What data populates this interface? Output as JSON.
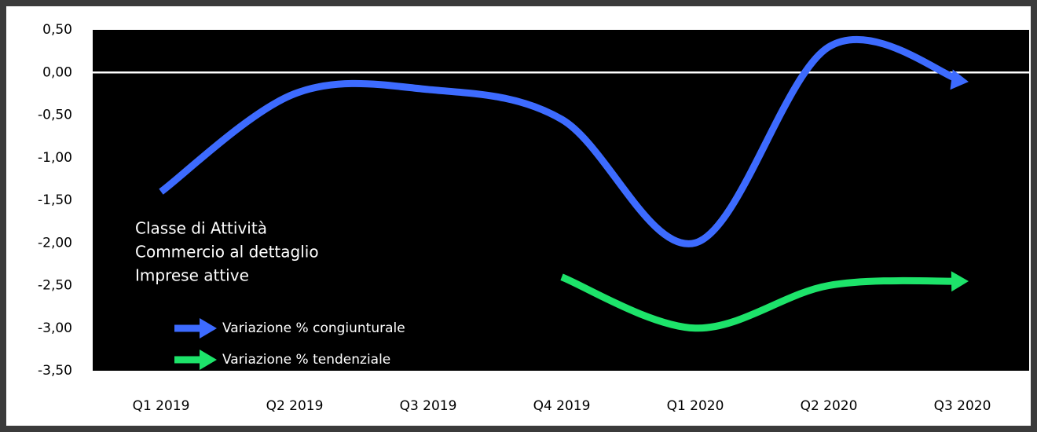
{
  "chart_data": {
    "type": "line",
    "categories": [
      "Q1 2019",
      "Q2 2019",
      "Q3 2019",
      "Q4 2019",
      "Q1 2020",
      "Q2 2020",
      "Q3 2020"
    ],
    "series": [
      {
        "name": "Variazione % congiunturale",
        "color": "#3d6bff",
        "values": [
          -1.4,
          -0.25,
          -0.2,
          -0.55,
          -2.0,
          0.3,
          -0.1
        ]
      },
      {
        "name": "Variazione % tendenziale",
        "color": "#1de36a",
        "values": [
          null,
          null,
          null,
          -2.4,
          -3.0,
          -2.5,
          -2.45
        ]
      }
    ],
    "ylim": [
      -3.5,
      0.5
    ],
    "yticks": [
      {
        "value": 0.5,
        "label": "0,50"
      },
      {
        "value": 0,
        "label": "0,00"
      },
      {
        "value": -0.5,
        "label": "-0,50"
      },
      {
        "value": -1,
        "label": "-1,00"
      },
      {
        "value": -1.5,
        "label": "-1,50"
      },
      {
        "value": -2,
        "label": "-2,00"
      },
      {
        "value": -2.5,
        "label": "-2,50"
      },
      {
        "value": -3,
        "label": "-3,00"
      },
      {
        "value": -3.5,
        "label": "-3,50"
      }
    ],
    "annotations": [
      "Classe di Attività",
      "Commercio al dettaglio",
      "Imprese attive"
    ]
  }
}
